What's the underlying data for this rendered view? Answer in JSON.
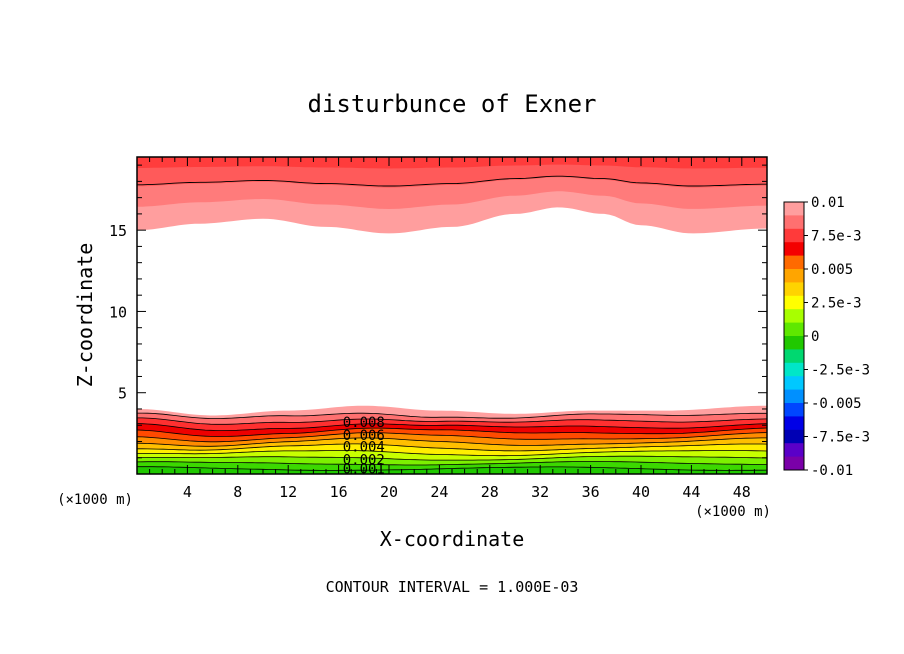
{
  "chart_data": {
    "type": "contour",
    "title": "disturbunce of Exner",
    "xlabel": "X-coordinate",
    "ylabel": "Z-coordinate",
    "x_unit_note": "(×1000 m)",
    "y_unit_note": "(×1000 m)",
    "xlim": [
      0,
      50
    ],
    "ylim": [
      0,
      19.5
    ],
    "x_ticks": [
      4,
      8,
      12,
      16,
      20,
      24,
      28,
      32,
      36,
      40,
      44,
      48
    ],
    "y_ticks": [
      5,
      10,
      15
    ],
    "footer": "CONTOUR INTERVAL = 1.000E-03",
    "contour_interval": 0.001,
    "contour_labels": [
      {
        "text": "0.008",
        "x": 18,
        "y": 3.2
      },
      {
        "text": "0.006",
        "x": 18,
        "y": 2.4
      },
      {
        "text": "0.004",
        "x": 18,
        "y": 1.7
      },
      {
        "text": "0.002",
        "x": 18,
        "y": 0.9
      },
      {
        "text": "0.001",
        "x": 18,
        "y": 0.35
      }
    ],
    "colorbar": {
      "range": [
        -0.01,
        0.01
      ],
      "tick_labels": [
        "0.01",
        "7.5e-3",
        "0.005",
        "2.5e-3",
        "0",
        "-2.5e-3",
        "-0.005",
        "-7.5e-3",
        "-0.01"
      ],
      "colors_top_to_bottom": [
        "#ff9e9e",
        "#ff7070",
        "#ff3a3a",
        "#f40000",
        "#ff6a00",
        "#ffa500",
        "#ffd300",
        "#ffff00",
        "#a8ff00",
        "#5ee800",
        "#20c800",
        "#00d870",
        "#00e6c8",
        "#00c8ff",
        "#0090ff",
        "#0046ff",
        "#0000e6",
        "#0000b4",
        "#5a00c8",
        "#7a00a8"
      ]
    },
    "bands": {
      "upper_layer": {
        "description": "Exner disturbance near model top; undulating band between z~15 and top",
        "levels": [
          0.01,
          0.009,
          0.008,
          0.007
        ],
        "boundary_z": [
          {
            "x": 0,
            "z": 15.0
          },
          {
            "x": 5,
            "z": 15.4
          },
          {
            "x": 10,
            "z": 15.7
          },
          {
            "x": 15,
            "z": 15.2
          },
          {
            "x": 20,
            "z": 14.8
          },
          {
            "x": 25,
            "z": 15.2
          },
          {
            "x": 30,
            "z": 16.0
          },
          {
            "x": 33.5,
            "z": 16.4
          },
          {
            "x": 37,
            "z": 16.0
          },
          {
            "x": 40,
            "z": 15.3
          },
          {
            "x": 44,
            "z": 14.8
          },
          {
            "x": 50,
            "z": 15.1
          }
        ]
      },
      "lower_layer": {
        "description": "Positive Exner disturbance in the lowest ~4 km",
        "top_z": [
          {
            "x": 0,
            "z": 4.0
          },
          {
            "x": 6,
            "z": 3.6
          },
          {
            "x": 12,
            "z": 3.9
          },
          {
            "x": 18,
            "z": 4.2
          },
          {
            "x": 24,
            "z": 3.9
          },
          {
            "x": 30,
            "z": 3.7
          },
          {
            "x": 36,
            "z": 3.9
          },
          {
            "x": 42,
            "z": 3.9
          },
          {
            "x": 50,
            "z": 4.2
          }
        ]
      }
    }
  }
}
